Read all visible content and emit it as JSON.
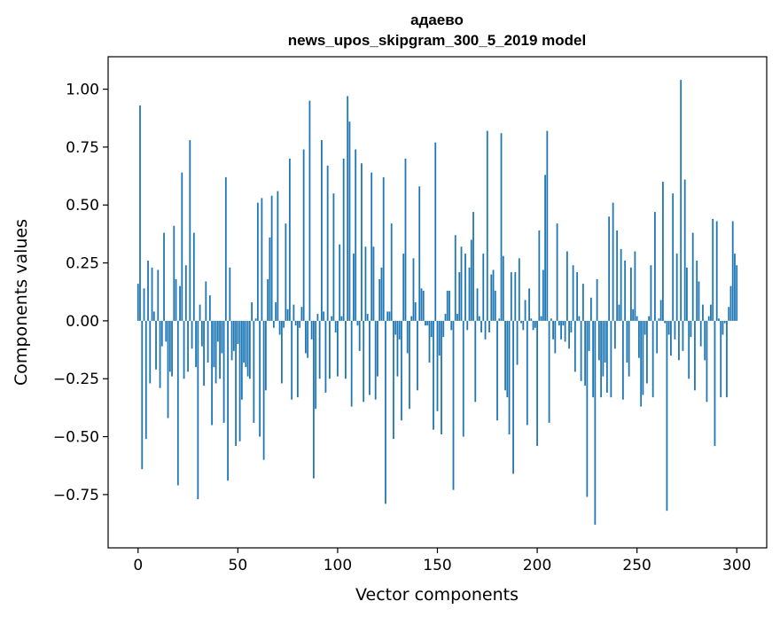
{
  "chart_data": {
    "type": "bar",
    "title": "адаево",
    "subtitle": "news_upos_skipgram_300_5_2019 model",
    "xlabel": "Vector components",
    "ylabel": "Components values",
    "xlim": [
      -15,
      315
    ],
    "ylim": [
      -0.98,
      1.14
    ],
    "xticks": [
      0,
      50,
      100,
      150,
      200,
      250,
      300
    ],
    "yticks": [
      -0.75,
      -0.5,
      -0.25,
      0.0,
      0.25,
      0.5,
      0.75,
      1.0
    ],
    "xtick_labels": [
      "0",
      "50",
      "100",
      "150",
      "200",
      "250",
      "300"
    ],
    "ytick_labels": [
      "−0.75",
      "−0.50",
      "−0.25",
      "0.00",
      "0.25",
      "0.50",
      "0.75",
      "1.00"
    ],
    "grid": false,
    "legend": "none",
    "bar_color": "#1f77b4",
    "values": [
      0.16,
      0.93,
      -0.64,
      0.14,
      -0.51,
      0.26,
      -0.27,
      0.23,
      0.04,
      -0.21,
      0.22,
      -0.29,
      -0.11,
      0.38,
      -0.09,
      -0.42,
      -0.22,
      -0.24,
      0.41,
      0.18,
      -0.71,
      0.15,
      0.64,
      -0.25,
      0.24,
      -0.22,
      0.78,
      -0.12,
      0.38,
      -0.2,
      -0.77,
      0.07,
      -0.11,
      -0.28,
      0.17,
      -0.18,
      0.11,
      -0.45,
      -0.2,
      -0.27,
      -0.09,
      -0.25,
      -0.14,
      -0.44,
      0.62,
      -0.69,
      0.23,
      -0.17,
      -0.13,
      -0.54,
      -0.1,
      -0.52,
      -0.34,
      -0.18,
      -0.2,
      -0.24,
      -0.25,
      0.08,
      -0.44,
      0.01,
      0.51,
      -0.5,
      0.53,
      -0.6,
      -0.3,
      0.18,
      0.36,
      0.54,
      -0.03,
      0.08,
      0.56,
      -0.06,
      -0.27,
      -0.03,
      0.42,
      0.05,
      0.7,
      -0.34,
      0.07,
      -0.02,
      -0.33,
      -0.03,
      0.06,
      0.74,
      -0.14,
      -0.16,
      0.95,
      -0.08,
      -0.68,
      -0.38,
      0.03,
      -0.25,
      0.78,
      0.04,
      -0.31,
      0.67,
      -0.25,
      0.02,
      0.55,
      -0.05,
      -0.24,
      0.33,
      0.02,
      0.7,
      -0.25,
      0.97,
      0.86,
      -0.37,
      0.29,
      0.74,
      -0.02,
      -0.13,
      0.68,
      -0.35,
      0.32,
      0.03,
      -0.32,
      0.64,
      0.32,
      -0.34,
      -0.24,
      0.18,
      0.23,
      0.62,
      -0.79,
      0.04,
      0.04,
      0.42,
      -0.51,
      -0.06,
      -0.24,
      -0.08,
      -0.43,
      0.29,
      0.7,
      -0.14,
      -0.38,
      0.02,
      0.27,
      0.08,
      -0.3,
      0.58,
      0.14,
      0.13,
      -0.02,
      -0.02,
      -0.18,
      -0.07,
      -0.47,
      0.77,
      -0.39,
      -0.15,
      -0.49,
      -0.07,
      0.03,
      0.13,
      0.13,
      -0.04,
      -0.73,
      0.37,
      0.03,
      0.21,
      0.32,
      -0.5,
      0.29,
      -0.04,
      0.23,
      0.35,
      0.47,
      -0.35,
      0.14,
      0.02,
      -0.05,
      0.29,
      -0.08,
      0.82,
      -0.05,
      0.2,
      0.22,
      0.13,
      -0.43,
      0.01,
      0.81,
      0.28,
      -0.3,
      -0.33,
      -0.49,
      0.21,
      -0.66,
      0.21,
      -0.19,
      0.27,
      -0.01,
      -0.04,
      0.09,
      -0.45,
      0.14,
      0.01,
      -0.04,
      -0.03,
      -0.54,
      0.39,
      0.02,
      0.22,
      0.63,
      0.82,
      -0.44,
      0.01,
      -0.08,
      -0.14,
      0.42,
      -0.02,
      -0.08,
      -0.02,
      -0.09,
      0.3,
      -0.12,
      -0.05,
      0.24,
      -0.22,
      0.21,
      0.02,
      -0.26,
      0.16,
      -0.28,
      -0.76,
      -0.13,
      0.1,
      -0.33,
      -0.88,
      0.18,
      -0.17,
      -0.33,
      -0.24,
      -0.18,
      -0.31,
      0.45,
      -0.33,
      0.51,
      -0.12,
      0.39,
      0.07,
      0.31,
      -0.34,
      0.26,
      -0.18,
      -0.24,
      0.23,
      0.05,
      0.3,
      0.02,
      -0.16,
      -0.37,
      -0.32,
      -0.06,
      -0.27,
      0.02,
      0.24,
      -0.33,
      0.47,
      -0.14,
      0.01,
      0.09,
      0.6,
      -0.01,
      -0.82,
      -0.06,
      -0.15,
      0.55,
      -0.08,
      0.29,
      -0.17,
      1.04,
      -0.13,
      0.61,
      0.23,
      -0.25,
      -0.07,
      0.38,
      -0.3,
      0.26,
      0.17,
      -0.11,
      0.07,
      -0.17,
      -0.35,
      0.02,
      0.07,
      0.44,
      -0.54,
      0.43,
      0.01,
      -0.33,
      -0.06,
      -0.01,
      -0.33,
      0.06,
      0.15,
      0.43,
      0.29,
      0.24
    ]
  }
}
